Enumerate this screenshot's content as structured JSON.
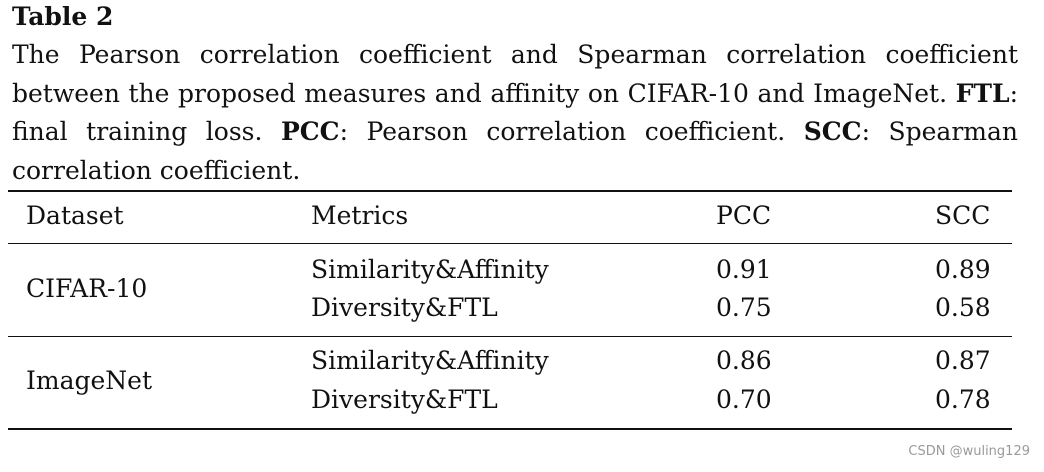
{
  "caption": {
    "label": "Table 2",
    "intro": "The Pearson correlation coefficient and Spearman correlation coefficient between the proposed measures and affinity on CIFAR-10 and ImageNet.",
    "notes": [
      {
        "abbr": "FTL",
        "text": ": final training loss."
      },
      {
        "abbr": "PCC",
        "text": ": Pearson correlation coefficient."
      },
      {
        "abbr": "SCC",
        "text": ": Spearman correlation coefficient."
      }
    ]
  },
  "table": {
    "columns": [
      "Dataset",
      "Metrics",
      "PCC",
      "SCC"
    ],
    "groups": [
      {
        "dataset": "CIFAR-10",
        "rows": [
          {
            "metric": "Similarity&Affinity",
            "pcc": "0.91",
            "scc": "0.89"
          },
          {
            "metric": "Diversity&FTL",
            "pcc": "0.75",
            "scc": "0.58"
          }
        ]
      },
      {
        "dataset": "ImageNet",
        "rows": [
          {
            "metric": "Similarity&Affinity",
            "pcc": "0.86",
            "scc": "0.87"
          },
          {
            "metric": "Diversity&FTL",
            "pcc": "0.70",
            "scc": "0.78"
          }
        ]
      }
    ]
  },
  "watermark": "CSDN @wuling129"
}
